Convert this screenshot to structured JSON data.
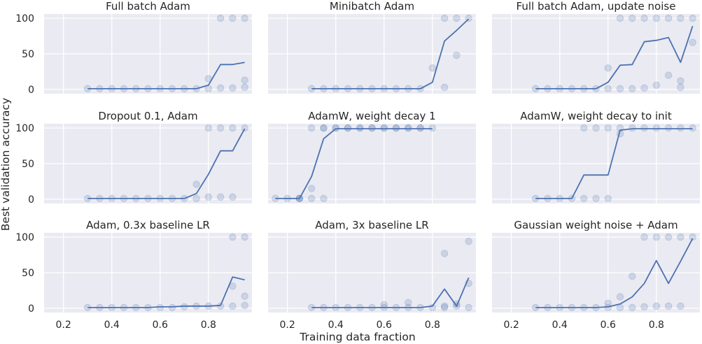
{
  "figure": {
    "ylabel": "Best validation accuracy",
    "xlabel": "Training data fraction",
    "x_ticks": [
      0.2,
      0.4,
      0.6,
      0.8
    ],
    "y_ticks": [
      0,
      50,
      100
    ],
    "colors": {
      "panel_bg": "#eaeaf2",
      "grid": "#ffffff",
      "line": "#4c72b0",
      "points": "#4c72b0"
    }
  },
  "chart_data": [
    {
      "type": "line",
      "title": "Full batch Adam",
      "xlim": [
        0.12,
        0.98
      ],
      "ylim": [
        -6,
        106
      ],
      "grid": true,
      "line": {
        "x": [
          0.3,
          0.35,
          0.4,
          0.45,
          0.5,
          0.55,
          0.6,
          0.65,
          0.7,
          0.75,
          0.8,
          0.85,
          0.9,
          0.95
        ],
        "y": [
          1,
          1,
          1,
          1,
          1,
          1,
          1,
          1,
          1,
          1,
          6,
          35,
          35,
          38
        ]
      },
      "points": [
        [
          0.3,
          1
        ],
        [
          0.35,
          1
        ],
        [
          0.4,
          1
        ],
        [
          0.45,
          1
        ],
        [
          0.5,
          1
        ],
        [
          0.55,
          1
        ],
        [
          0.6,
          1
        ],
        [
          0.65,
          1
        ],
        [
          0.7,
          1
        ],
        [
          0.75,
          1
        ],
        [
          0.8,
          1
        ],
        [
          0.8,
          15
        ],
        [
          0.85,
          2
        ],
        [
          0.85,
          100
        ],
        [
          0.9,
          2
        ],
        [
          0.9,
          100
        ],
        [
          0.95,
          3
        ],
        [
          0.95,
          13
        ],
        [
          0.95,
          100
        ]
      ]
    },
    {
      "type": "line",
      "title": "Minibatch Adam",
      "xlim": [
        0.12,
        0.98
      ],
      "ylim": [
        -6,
        106
      ],
      "grid": true,
      "line": {
        "x": [
          0.3,
          0.35,
          0.4,
          0.45,
          0.5,
          0.55,
          0.6,
          0.65,
          0.7,
          0.75,
          0.8,
          0.85,
          0.9,
          0.95
        ],
        "y": [
          1,
          1,
          1,
          1,
          1,
          1,
          1,
          1,
          1,
          1,
          10,
          68,
          83,
          99
        ]
      },
      "points": [
        [
          0.3,
          1
        ],
        [
          0.35,
          1
        ],
        [
          0.4,
          1
        ],
        [
          0.45,
          1
        ],
        [
          0.5,
          1
        ],
        [
          0.55,
          1
        ],
        [
          0.6,
          1
        ],
        [
          0.65,
          1
        ],
        [
          0.7,
          1
        ],
        [
          0.75,
          1
        ],
        [
          0.8,
          30
        ],
        [
          0.85,
          3
        ],
        [
          0.85,
          100
        ],
        [
          0.9,
          48
        ],
        [
          0.9,
          100
        ],
        [
          0.95,
          100
        ]
      ]
    },
    {
      "type": "line",
      "title": "Full batch Adam, update noise",
      "xlim": [
        0.12,
        0.98
      ],
      "ylim": [
        -6,
        106
      ],
      "grid": true,
      "line": {
        "x": [
          0.3,
          0.35,
          0.4,
          0.45,
          0.5,
          0.55,
          0.6,
          0.65,
          0.7,
          0.75,
          0.8,
          0.85,
          0.9,
          0.95
        ],
        "y": [
          1,
          1,
          1,
          1,
          1,
          1,
          10,
          34,
          35,
          67,
          69,
          73,
          38,
          89
        ]
      },
      "points": [
        [
          0.3,
          1
        ],
        [
          0.35,
          1
        ],
        [
          0.4,
          1
        ],
        [
          0.45,
          1
        ],
        [
          0.5,
          1
        ],
        [
          0.55,
          1
        ],
        [
          0.6,
          1
        ],
        [
          0.6,
          30
        ],
        [
          0.65,
          1
        ],
        [
          0.65,
          100
        ],
        [
          0.7,
          1
        ],
        [
          0.7,
          100
        ],
        [
          0.75,
          2
        ],
        [
          0.75,
          100
        ],
        [
          0.8,
          6
        ],
        [
          0.8,
          100
        ],
        [
          0.85,
          20
        ],
        [
          0.85,
          100
        ],
        [
          0.9,
          3
        ],
        [
          0.9,
          12
        ],
        [
          0.9,
          100
        ],
        [
          0.95,
          66
        ],
        [
          0.95,
          100
        ]
      ]
    },
    {
      "type": "line",
      "title": "Dropout 0.1, Adam",
      "xlim": [
        0.12,
        0.98
      ],
      "ylim": [
        -6,
        106
      ],
      "grid": true,
      "line": {
        "x": [
          0.3,
          0.35,
          0.4,
          0.45,
          0.5,
          0.55,
          0.6,
          0.65,
          0.7,
          0.75,
          0.8,
          0.85,
          0.9,
          0.95
        ],
        "y": [
          1,
          1,
          1,
          1,
          1,
          1,
          1,
          1,
          1,
          8,
          35,
          68,
          68,
          99
        ]
      },
      "points": [
        [
          0.3,
          1
        ],
        [
          0.35,
          1
        ],
        [
          0.4,
          1
        ],
        [
          0.45,
          1
        ],
        [
          0.5,
          1
        ],
        [
          0.55,
          1
        ],
        [
          0.6,
          1
        ],
        [
          0.65,
          1
        ],
        [
          0.7,
          1
        ],
        [
          0.75,
          1
        ],
        [
          0.75,
          21
        ],
        [
          0.8,
          3
        ],
        [
          0.8,
          100
        ],
        [
          0.85,
          3
        ],
        [
          0.85,
          100
        ],
        [
          0.9,
          3
        ],
        [
          0.9,
          100
        ],
        [
          0.95,
          100
        ]
      ]
    },
    {
      "type": "line",
      "title": "AdamW, weight decay 1",
      "xlim": [
        0.12,
        0.98
      ],
      "ylim": [
        -6,
        106
      ],
      "grid": true,
      "line": {
        "x": [
          0.15,
          0.2,
          0.25,
          0.3,
          0.35,
          0.4,
          0.45,
          0.5,
          0.55,
          0.6,
          0.65,
          0.7,
          0.75,
          0.8
        ],
        "y": [
          1,
          1,
          1,
          32,
          85,
          99,
          99,
          99,
          99,
          99,
          99,
          99,
          99,
          99
        ]
      },
      "points": [
        [
          0.15,
          1
        ],
        [
          0.2,
          1
        ],
        [
          0.25,
          1
        ],
        [
          0.25,
          1
        ],
        [
          0.25,
          1
        ],
        [
          0.3,
          1
        ],
        [
          0.3,
          15
        ],
        [
          0.3,
          100
        ],
        [
          0.35,
          1
        ],
        [
          0.35,
          100
        ],
        [
          0.35,
          100
        ],
        [
          0.4,
          100
        ],
        [
          0.4,
          100
        ],
        [
          0.45,
          100
        ],
        [
          0.45,
          100
        ],
        [
          0.5,
          100
        ],
        [
          0.5,
          100
        ],
        [
          0.55,
          100
        ],
        [
          0.55,
          100
        ],
        [
          0.6,
          100
        ],
        [
          0.6,
          100
        ],
        [
          0.65,
          100
        ],
        [
          0.65,
          100
        ],
        [
          0.7,
          100
        ],
        [
          0.7,
          100
        ],
        [
          0.75,
          100
        ],
        [
          0.75,
          100
        ],
        [
          0.8,
          100
        ]
      ]
    },
    {
      "type": "line",
      "title": "AdamW, weight decay to init",
      "xlim": [
        0.12,
        0.98
      ],
      "ylim": [
        -6,
        106
      ],
      "grid": true,
      "line": {
        "x": [
          0.3,
          0.35,
          0.4,
          0.45,
          0.5,
          0.55,
          0.6,
          0.65,
          0.7,
          0.75,
          0.8,
          0.85,
          0.9,
          0.95
        ],
        "y": [
          1,
          1,
          1,
          1,
          34,
          34,
          34,
          97,
          99,
          99,
          99,
          99,
          99,
          99
        ]
      },
      "points": [
        [
          0.3,
          1
        ],
        [
          0.35,
          1
        ],
        [
          0.4,
          1
        ],
        [
          0.45,
          1
        ],
        [
          0.5,
          1
        ],
        [
          0.5,
          100
        ],
        [
          0.55,
          1
        ],
        [
          0.55,
          100
        ],
        [
          0.6,
          1
        ],
        [
          0.6,
          100
        ],
        [
          0.65,
          92
        ],
        [
          0.65,
          100
        ],
        [
          0.7,
          100
        ],
        [
          0.75,
          100
        ],
        [
          0.8,
          100
        ],
        [
          0.85,
          100
        ],
        [
          0.9,
          100
        ],
        [
          0.95,
          100
        ]
      ]
    },
    {
      "type": "line",
      "title": "Adam, 0.3x baseline LR",
      "xlim": [
        0.12,
        0.98
      ],
      "ylim": [
        -6,
        106
      ],
      "grid": true,
      "line": {
        "x": [
          0.3,
          0.35,
          0.4,
          0.45,
          0.5,
          0.55,
          0.6,
          0.65,
          0.7,
          0.75,
          0.8,
          0.85,
          0.9,
          0.95
        ],
        "y": [
          1,
          1,
          1,
          1,
          1,
          1,
          2,
          2,
          3,
          3,
          3,
          4,
          44,
          40
        ]
      },
      "points": [
        [
          0.3,
          1
        ],
        [
          0.35,
          1
        ],
        [
          0.4,
          1
        ],
        [
          0.45,
          1
        ],
        [
          0.5,
          1
        ],
        [
          0.55,
          1
        ],
        [
          0.6,
          1
        ],
        [
          0.65,
          1
        ],
        [
          0.7,
          2
        ],
        [
          0.75,
          3
        ],
        [
          0.8,
          3
        ],
        [
          0.85,
          3
        ],
        [
          0.9,
          3
        ],
        [
          0.9,
          31
        ],
        [
          0.9,
          100
        ],
        [
          0.95,
          4
        ],
        [
          0.95,
          17
        ],
        [
          0.95,
          100
        ]
      ]
    },
    {
      "type": "line",
      "title": "Adam, 3x baseline LR",
      "xlim": [
        0.12,
        0.98
      ],
      "ylim": [
        -6,
        106
      ],
      "grid": true,
      "line": {
        "x": [
          0.3,
          0.35,
          0.4,
          0.45,
          0.5,
          0.55,
          0.6,
          0.65,
          0.7,
          0.75,
          0.8,
          0.85,
          0.9,
          0.95
        ],
        "y": [
          1,
          1,
          1,
          1,
          1,
          1,
          1,
          1,
          1,
          1,
          3,
          27,
          3,
          43
        ]
      },
      "points": [
        [
          0.3,
          1
        ],
        [
          0.35,
          1
        ],
        [
          0.4,
          1
        ],
        [
          0.45,
          1
        ],
        [
          0.5,
          1
        ],
        [
          0.55,
          1
        ],
        [
          0.6,
          1
        ],
        [
          0.6,
          5
        ],
        [
          0.65,
          1
        ],
        [
          0.7,
          1
        ],
        [
          0.7,
          8
        ],
        [
          0.75,
          1
        ],
        [
          0.8,
          1
        ],
        [
          0.85,
          1
        ],
        [
          0.85,
          3
        ],
        [
          0.85,
          77
        ],
        [
          0.9,
          3
        ],
        [
          0.9,
          6
        ],
        [
          0.95,
          1
        ],
        [
          0.95,
          35
        ],
        [
          0.95,
          94
        ]
      ]
    },
    {
      "type": "line",
      "title": "Gaussian weight noise + Adam",
      "xlim": [
        0.12,
        0.98
      ],
      "ylim": [
        -6,
        106
      ],
      "grid": true,
      "line": {
        "x": [
          0.3,
          0.35,
          0.4,
          0.45,
          0.5,
          0.55,
          0.6,
          0.65,
          0.7,
          0.75,
          0.8,
          0.85,
          0.9,
          0.95
        ],
        "y": [
          1,
          1,
          1,
          1,
          1,
          1,
          2,
          6,
          16,
          35,
          67,
          35,
          66,
          98
        ]
      },
      "points": [
        [
          0.3,
          1
        ],
        [
          0.35,
          1
        ],
        [
          0.4,
          1
        ],
        [
          0.45,
          1
        ],
        [
          0.5,
          1
        ],
        [
          0.55,
          1
        ],
        [
          0.6,
          1
        ],
        [
          0.6,
          7
        ],
        [
          0.65,
          1
        ],
        [
          0.65,
          16
        ],
        [
          0.7,
          1
        ],
        [
          0.7,
          45
        ],
        [
          0.75,
          2
        ],
        [
          0.75,
          100
        ],
        [
          0.8,
          3
        ],
        [
          0.8,
          100
        ],
        [
          0.85,
          3
        ],
        [
          0.85,
          100
        ],
        [
          0.9,
          3
        ],
        [
          0.9,
          100
        ],
        [
          0.95,
          100
        ]
      ]
    }
  ]
}
